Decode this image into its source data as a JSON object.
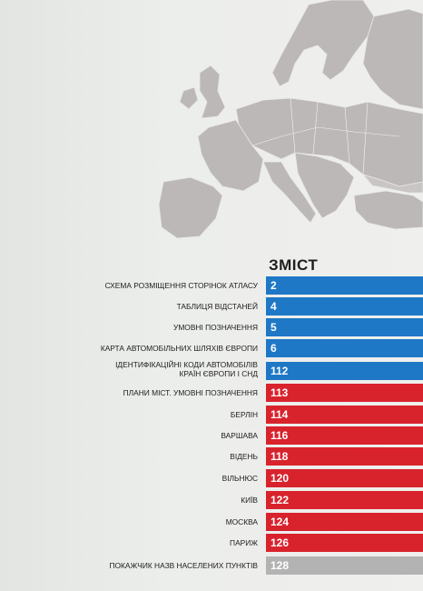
{
  "contents": {
    "title": "ЗМІСТ",
    "colors": {
      "blue": "#1f78c6",
      "red": "#d8232d",
      "grey": "#b3b3b3"
    },
    "items": [
      {
        "label": "СХЕМА РОЗМІЩЕННЯ СТОРІНОК АТЛАСУ",
        "page": "2",
        "color": "blue"
      },
      {
        "label": "ТАБЛИЦЯ ВІДСТАНЕЙ",
        "page": "4",
        "color": "blue"
      },
      {
        "label": "УМОВНІ ПОЗНАЧЕННЯ",
        "page": "5",
        "color": "blue"
      },
      {
        "label": "КАРТА АВТОМОБІЛЬНИХ ШЛЯХІВ ЄВРОПИ",
        "page": "6",
        "color": "blue"
      },
      {
        "label": "ІДЕНТИФІКАЦІЙНІ КОДИ АВТОМОБІЛІВ",
        "label2": "КРАЇН ЄВРОПИ І СНД",
        "page": "112",
        "color": "blue"
      },
      {
        "label": "ПЛАНИ МІСТ. УМОВНІ ПОЗНАЧЕННЯ",
        "page": "113",
        "color": "red"
      },
      {
        "label": "БЕРЛІН",
        "page": "114",
        "color": "red"
      },
      {
        "label": "ВАРШАВА",
        "page": "116",
        "color": "red"
      },
      {
        "label": "ВІДЕНЬ",
        "page": "118",
        "color": "red"
      },
      {
        "label": "ВІЛЬНЮС",
        "page": "120",
        "color": "red"
      },
      {
        "label": "КИЇВ",
        "page": "122",
        "color": "red"
      },
      {
        "label": "МОСКВА",
        "page": "124",
        "color": "red"
      },
      {
        "label": "ПАРИЖ",
        "page": "126",
        "color": "red"
      },
      {
        "label": "ПОКАЖЧИК НАЗВ НАСЕЛЕНИХ ПУНКТІВ",
        "page": "128",
        "color": "grey"
      }
    ]
  }
}
